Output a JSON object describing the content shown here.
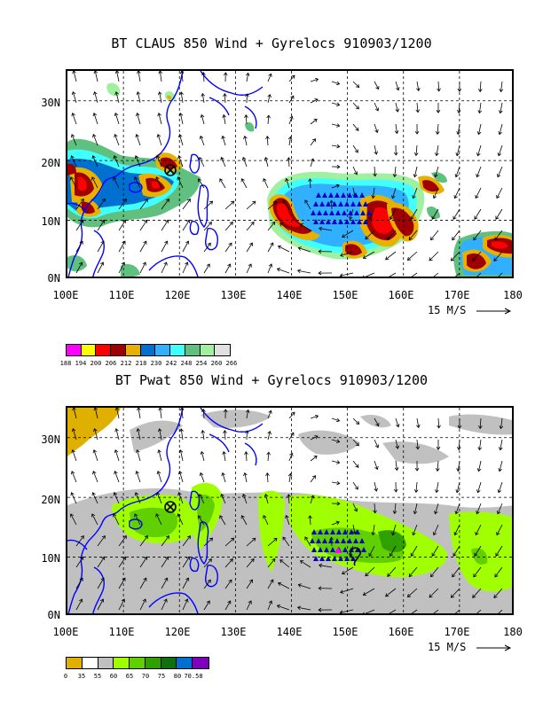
{
  "top_panel": {
    "title": "BT CLAUS 850 Wind + Gyrelocs 910903/1200",
    "lat_labels": [
      "30N",
      "20N",
      "10N",
      "0N"
    ],
    "lon_labels": [
      "100E",
      "110E",
      "120E",
      "130E",
      "140E",
      "150E",
      "160E",
      "170E",
      "180"
    ],
    "scale_label": "15 M/S",
    "legend": {
      "colors": [
        "#ff00ff",
        "#ffff00",
        "#ff0000",
        "#a00000",
        "#e8b000",
        "#0070d0",
        "#30b0ff",
        "#40ffff",
        "#60c080",
        "#a0f0a0",
        "#e0e0e0"
      ],
      "ticks": [
        "188",
        "194",
        "200",
        "206",
        "212",
        "218",
        "230",
        "242",
        "248",
        "254",
        "260",
        "266"
      ]
    }
  },
  "bottom_panel": {
    "title": "BT Pwat 850 Wind + Gyrelocs 910903/1200",
    "lat_labels": [
      "30N",
      "20N",
      "10N",
      "0N"
    ],
    "lon_labels": [
      "100E",
      "110E",
      "120E",
      "130E",
      "140E",
      "150E",
      "160E",
      "170E",
      "180"
    ],
    "scale_label": "15 M/S",
    "legend": {
      "colors": [
        "#e0b000",
        "#ffffff",
        "#c0c0c0",
        "#a0ff00",
        "#60d000",
        "#30a000",
        "#107010",
        "#0070d0",
        "#8000c0"
      ],
      "ticks": [
        "0",
        "35",
        "55",
        "60",
        "65",
        "70",
        "75",
        "80",
        "70.58"
      ]
    }
  },
  "colors": {
    "coast": "#0000ff",
    "triangle": "#0000cc",
    "arrow": "#000000"
  },
  "icons": {
    "gyre_marker": "circle-x-icon",
    "storm_marker": "tropical-storm-icon"
  }
}
